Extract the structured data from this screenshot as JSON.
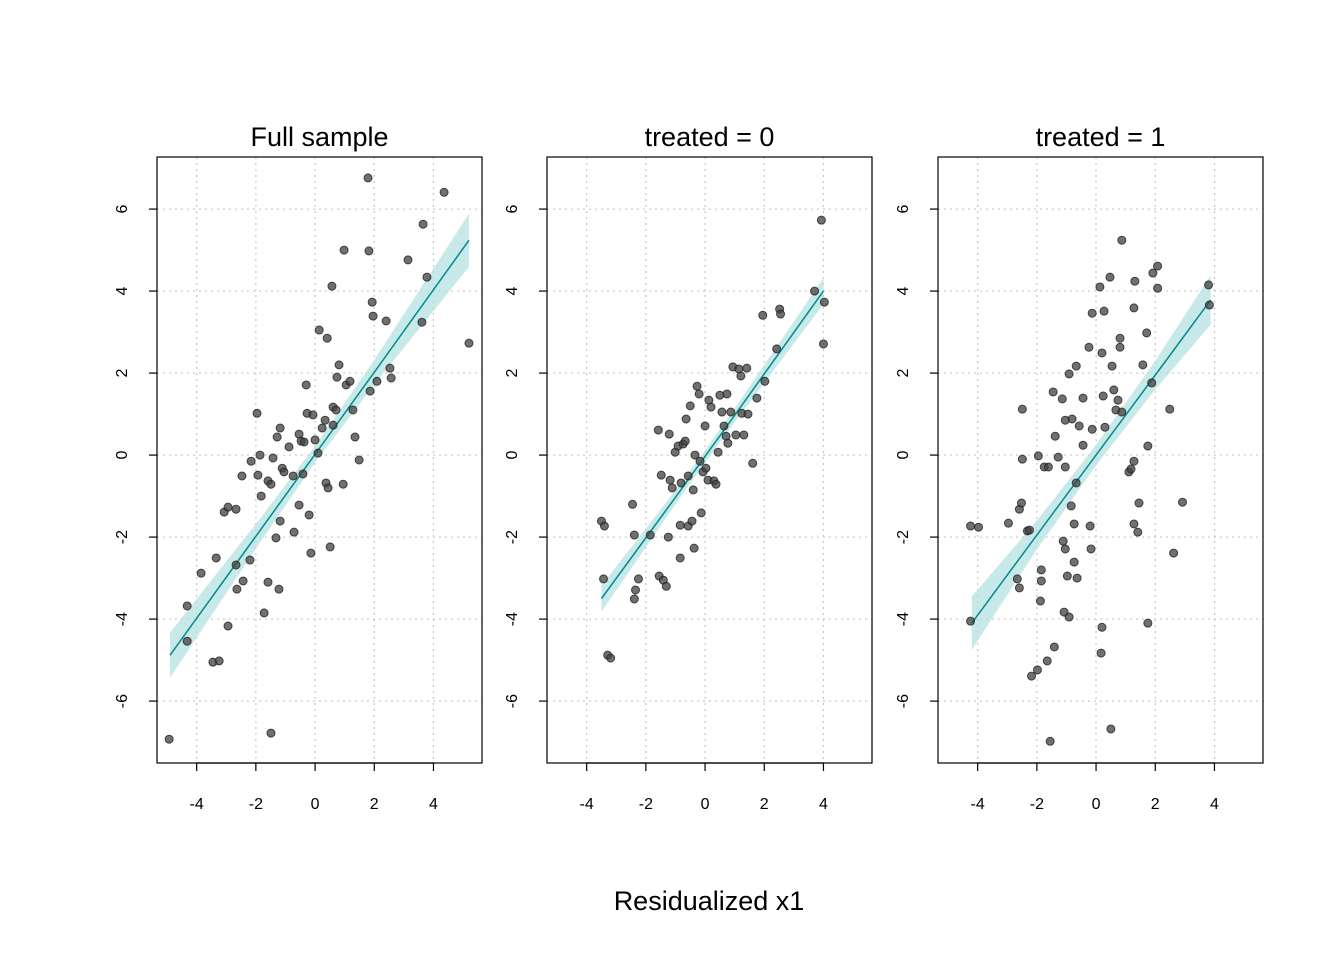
{
  "xlabel": "Residualized x1",
  "chart_data": [
    {
      "type": "scatter",
      "title": "Full sample",
      "xlim": [
        -5.34,
        5.64
      ],
      "ylim": [
        -7.51,
        7.27
      ],
      "xticks": [
        -4,
        -2,
        0,
        2,
        4
      ],
      "yticks": [
        -6,
        -4,
        -2,
        0,
        2,
        4,
        6
      ],
      "grid": true,
      "point_color": "#404040",
      "line_color": "#008b8b",
      "band_color": "#b0dfe0",
      "x": [
        -4.93,
        -4.32,
        -4.32,
        -3.85,
        -3.45,
        -3.24,
        -3.34,
        -3.07,
        -2.94,
        -2.94,
        -2.67,
        -2.67,
        -2.64,
        -2.43,
        -2.47,
        -2.2,
        -2.16,
        -1.96,
        -1.93,
        -1.86,
        -1.82,
        -1.72,
        -1.59,
        -1.59,
        -1.49,
        -1.49,
        -1.42,
        -1.32,
        -1.28,
        -1.18,
        -1.18,
        -1.22,
        -1.11,
        -1.05,
        -0.88,
        -0.74,
        -0.71,
        -0.54,
        -0.47,
        -0.54,
        -0.41,
        -0.37,
        -0.3,
        -0.27,
        -0.2,
        -0.14,
        -0.07,
        0,
        0.14,
        0.1,
        0.24,
        0.34,
        0.41,
        0.37,
        0.44,
        0.51,
        0.57,
        0.61,
        0.61,
        0.74,
        0.71,
        0.81,
        0.95,
        0.98,
        1.05,
        1.18,
        1.28,
        1.49,
        1.35,
        1.79,
        1.82,
        1.86,
        1.93,
        1.96,
        2.09,
        2.4,
        2.53,
        2.57,
        3.14,
        3.61,
        3.65,
        3.78,
        4.36,
        5.2
      ],
      "y": [
        -6.93,
        -3.68,
        -4.54,
        -2.88,
        -5.05,
        -5.02,
        -2.51,
        -1.39,
        -1.27,
        -4.17,
        -1.32,
        -2.68,
        -3.27,
        -3.07,
        -0.51,
        -2.56,
        -0.15,
        1.02,
        -0.49,
        0,
        -1.0,
        -3.85,
        -3.1,
        -0.63,
        -0.71,
        -6.78,
        -0.07,
        -2.02,
        0.44,
        0.66,
        -1.61,
        -3.27,
        -0.32,
        -0.41,
        0.2,
        -0.51,
        -1.88,
        0.51,
        0.34,
        -1.22,
        -0.46,
        0.32,
        1.71,
        1.02,
        -1.46,
        -2.39,
        0.98,
        0.37,
        3.05,
        0.05,
        0.66,
        0.85,
        2.85,
        -0.68,
        -0.8,
        -2.24,
        4.12,
        1.17,
        0.73,
        1.9,
        1.1,
        2.2,
        -0.71,
        5.0,
        1.71,
        1.8,
        1.1,
        -0.12,
        0.44,
        6.76,
        4.98,
        1.56,
        3.73,
        3.39,
        1.8,
        3.27,
        2.12,
        1.88,
        4.76,
        3.24,
        5.63,
        4.34,
        6.41,
        2.73
      ],
      "fit": {
        "x": [
          -4.9,
          -2,
          0,
          2,
          5.2
        ],
        "y": [
          -4.88,
          -1.98,
          0.02,
          2.02,
          5.24
        ],
        "lower": [
          -5.43,
          -2.28,
          -0.18,
          1.72,
          4.59
        ],
        "upper": [
          -4.33,
          -1.68,
          0.22,
          2.32,
          5.89
        ]
      }
    },
    {
      "type": "scatter",
      "title": "treated = 0",
      "xlim": [
        -5.34,
        5.64
      ],
      "ylim": [
        -7.51,
        7.27
      ],
      "xticks": [
        -4,
        -2,
        0,
        2,
        4
      ],
      "yticks": [
        -6,
        -4,
        -2,
        0,
        2,
        4,
        6
      ],
      "grid": true,
      "point_color": "#404040",
      "line_color": "#008b8b",
      "band_color": "#b0dfe0",
      "x": [
        -3.5,
        -3.4,
        -3.43,
        -3.29,
        -3.19,
        -2.45,
        -2.39,
        -2.39,
        -2.35,
        -2.25,
        -1.85,
        -1.58,
        -1.55,
        -1.41,
        -1.31,
        -1.48,
        -1.21,
        -1.24,
        -1.18,
        -1.11,
        -1.01,
        -0.91,
        -0.84,
        -0.84,
        -0.81,
        -0.74,
        -0.67,
        -0.64,
        -0.57,
        -0.5,
        -0.57,
        -0.44,
        -0.4,
        -0.37,
        -0.34,
        -0.27,
        -0.2,
        -0.17,
        -0.13,
        -0.07,
        0,
        0.03,
        0.1,
        0.13,
        0.2,
        0.3,
        0.37,
        0.44,
        0.5,
        0.57,
        0.64,
        0.71,
        0.74,
        0.77,
        0.87,
        0.94,
        1.04,
        1.14,
        1.21,
        1.24,
        1.31,
        1.41,
        1.45,
        1.61,
        1.75,
        1.95,
        2.02,
        2.42,
        2.52,
        2.55,
        3.7,
        3.93,
        4.03,
        4.0
      ],
      "y": [
        -1.61,
        -1.73,
        -3.02,
        -4.88,
        -4.95,
        -1.2,
        -1.95,
        -3.51,
        -3.29,
        -3.02,
        -1.95,
        0.61,
        -2.95,
        -3.05,
        -3.2,
        -0.49,
        0.51,
        -2.0,
        -0.61,
        -0.8,
        0.07,
        0.22,
        -1.71,
        -2.51,
        -0.68,
        0.27,
        0.34,
        0.88,
        -0.51,
        1.2,
        -1.73,
        -1.61,
        -0.85,
        -2.27,
        0,
        1.68,
        1.49,
        -0.15,
        -1.41,
        -0.41,
        0.71,
        -0.32,
        -0.61,
        1.34,
        1.17,
        -0.63,
        -0.71,
        0.07,
        1.46,
        1.05,
        0.71,
        0.46,
        1.49,
        0.29,
        1.05,
        2.15,
        0.49,
        2.1,
        1.93,
        1.02,
        0.49,
        2.12,
        1.0,
        -0.2,
        1.39,
        3.41,
        1.8,
        2.59,
        3.56,
        3.44,
        4.0,
        5.73,
        3.73,
        2.71
      ],
      "fit": {
        "x": [
          -3.5,
          -1,
          0,
          1,
          4
        ],
        "y": [
          -3.5,
          -1.03,
          -0.03,
          0.97,
          4.0
        ],
        "lower": [
          -3.82,
          -1.2,
          -0.18,
          0.8,
          3.68
        ],
        "upper": [
          -3.18,
          -0.86,
          0.12,
          1.14,
          4.32
        ]
      }
    },
    {
      "type": "scatter",
      "title": "treated = 1",
      "xlim": [
        -5.34,
        5.64
      ],
      "ylim": [
        -7.51,
        7.27
      ],
      "xticks": [
        -4,
        -2,
        0,
        2,
        4
      ],
      "yticks": [
        -6,
        -4,
        -2,
        0,
        2,
        4,
        6
      ],
      "grid": true,
      "point_color": "#404040",
      "line_color": "#008b8b",
      "band_color": "#b0dfe0",
      "x": [
        -4.24,
        -3.97,
        -4.24,
        -2.96,
        -2.66,
        -2.59,
        -2.59,
        -2.52,
        -2.49,
        -2.49,
        -2.32,
        -2.25,
        -2.18,
        -1.98,
        -1.95,
        -1.85,
        -1.85,
        -1.88,
        -1.75,
        -1.65,
        -1.61,
        -1.55,
        -1.41,
        -1.45,
        -1.38,
        -1.28,
        -1.14,
        -1.11,
        -1.08,
        -1.04,
        -1.04,
        -1.04,
        -0.97,
        -0.91,
        -0.91,
        -0.84,
        -0.81,
        -0.74,
        -0.74,
        -0.67,
        -0.64,
        -0.67,
        -0.57,
        -0.44,
        -0.44,
        -0.24,
        -0.2,
        -0.13,
        -0.17,
        -0.13,
        0.13,
        0.17,
        0.2,
        0.2,
        0.24,
        0.27,
        0.3,
        0.47,
        0.5,
        0.54,
        0.6,
        0.67,
        0.74,
        0.81,
        0.81,
        0.87,
        0.87,
        1.11,
        1.18,
        1.28,
        1.28,
        1.28,
        1.31,
        1.45,
        1.41,
        1.58,
        1.71,
        1.75,
        1.75,
        1.88,
        1.92,
        2.08,
        2.08,
        2.49,
        2.62,
        2.92,
        3.8,
        3.83
      ],
      "y": [
        -1.73,
        -1.76,
        -4.05,
        -1.66,
        -3.02,
        -3.24,
        -1.32,
        -1.17,
        1.12,
        -0.1,
        -1.85,
        -1.83,
        -5.39,
        -5.24,
        -0.02,
        -2.8,
        -3.07,
        -3.56,
        -0.29,
        -5.02,
        -0.29,
        -6.98,
        -4.68,
        1.54,
        0.46,
        -0.05,
        1.37,
        -2.1,
        -3.83,
        0.85,
        -2.29,
        -0.29,
        -2.95,
        -3.95,
        1.98,
        -1.24,
        0.88,
        -1.68,
        -2.61,
        2.17,
        -3.0,
        -0.68,
        0.71,
        1.39,
        0.24,
        2.63,
        -1.73,
        3.46,
        -2.29,
        0.63,
        4.1,
        -4.83,
        -4.2,
        2.49,
        1.44,
        3.51,
        0.68,
        4.34,
        -6.68,
        2.17,
        1.59,
        1.1,
        1.34,
        2.85,
        2.63,
        5.24,
        1.05,
        -0.41,
        -0.34,
        -0.15,
        3.59,
        -1.68,
        4.24,
        -1.17,
        -1.88,
        2.2,
        2.98,
        -4.1,
        0.22,
        1.76,
        4.44,
        4.61,
        4.07,
        1.12,
        -2.39,
        -1.15,
        4.15,
        3.66
      ],
      "fit": {
        "x": [
          -4.2,
          -2,
          0,
          2,
          3.87
        ],
        "y": [
          -4.1,
          -1.95,
          0.0,
          1.95,
          3.78
        ],
        "lower": [
          -4.75,
          -2.3,
          -0.25,
          1.6,
          3.18
        ],
        "upper": [
          -3.45,
          -1.6,
          0.25,
          2.3,
          4.38
        ]
      }
    }
  ]
}
